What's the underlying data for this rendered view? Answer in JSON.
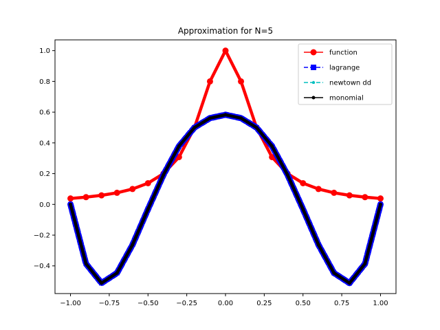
{
  "chart_data": {
    "type": "line",
    "title": "Approximation for N=5",
    "xlabel": "",
    "ylabel": "",
    "xlim": [
      -1.1,
      1.1
    ],
    "ylim": [
      -0.58,
      1.07
    ],
    "xticks": [
      -1.0,
      -0.75,
      -0.5,
      -0.25,
      0.0,
      0.25,
      0.5,
      0.75,
      1.0
    ],
    "xtick_labels": [
      "−1.00",
      "−0.75",
      "−0.50",
      "−0.25",
      "0.00",
      "0.25",
      "0.50",
      "0.75",
      "1.00"
    ],
    "yticks": [
      -0.4,
      -0.2,
      0.0,
      0.2,
      0.4,
      0.6,
      0.8,
      1.0
    ],
    "ytick_labels": [
      "−0.4",
      "−0.2",
      "0.0",
      "0.2",
      "0.4",
      "0.6",
      "0.8",
      "1.0"
    ],
    "grid": false,
    "legend_position": "top-right",
    "x": [
      -1.0,
      -0.9,
      -0.8,
      -0.7,
      -0.6,
      -0.5,
      -0.4,
      -0.3,
      -0.2,
      -0.1,
      0.0,
      0.1,
      0.2,
      0.3,
      0.4,
      0.5,
      0.6,
      0.7,
      0.8,
      0.9,
      1.0
    ],
    "series": [
      {
        "name": "function",
        "color": "#ff0000",
        "marker": "circle",
        "linestyle": "solid",
        "values": [
          0.0385,
          0.0471,
          0.0588,
          0.0755,
          0.1,
          0.1379,
          0.2,
          0.3077,
          0.5,
          0.8,
          1.0,
          0.8,
          0.5,
          0.3077,
          0.2,
          0.1379,
          0.1,
          0.0755,
          0.0588,
          0.0471,
          0.0385
        ]
      },
      {
        "name": "lagrange",
        "color": "#0000ff",
        "marker": "square",
        "linestyle": "dashed",
        "values": [
          0.0,
          -0.3861,
          -0.512,
          -0.4464,
          -0.2628,
          -0.0313,
          0.1928,
          0.3789,
          0.5,
          0.5611,
          0.583,
          0.5611,
          0.5,
          0.3789,
          0.1928,
          -0.0313,
          -0.2628,
          -0.4464,
          -0.512,
          -0.3861,
          0.0
        ]
      },
      {
        "name": "newtown dd",
        "color": "#00bfbf",
        "marker": "pentagon",
        "linestyle": "dashed",
        "values": [
          0.0,
          -0.3861,
          -0.512,
          -0.4464,
          -0.2628,
          -0.0313,
          0.1928,
          0.3789,
          0.5,
          0.5611,
          0.583,
          0.5611,
          0.5,
          0.3789,
          0.1928,
          -0.0313,
          -0.2628,
          -0.4464,
          -0.512,
          -0.3861,
          0.0
        ]
      },
      {
        "name": "monomial",
        "color": "#000000",
        "marker": "dot",
        "linestyle": "solid",
        "values": [
          0.0,
          -0.3861,
          -0.512,
          -0.4464,
          -0.2628,
          -0.0313,
          0.1928,
          0.3789,
          0.5,
          0.5611,
          0.583,
          0.5611,
          0.5,
          0.3789,
          0.1928,
          -0.0313,
          -0.2628,
          -0.4464,
          -0.512,
          -0.3861,
          0.0
        ]
      }
    ]
  }
}
